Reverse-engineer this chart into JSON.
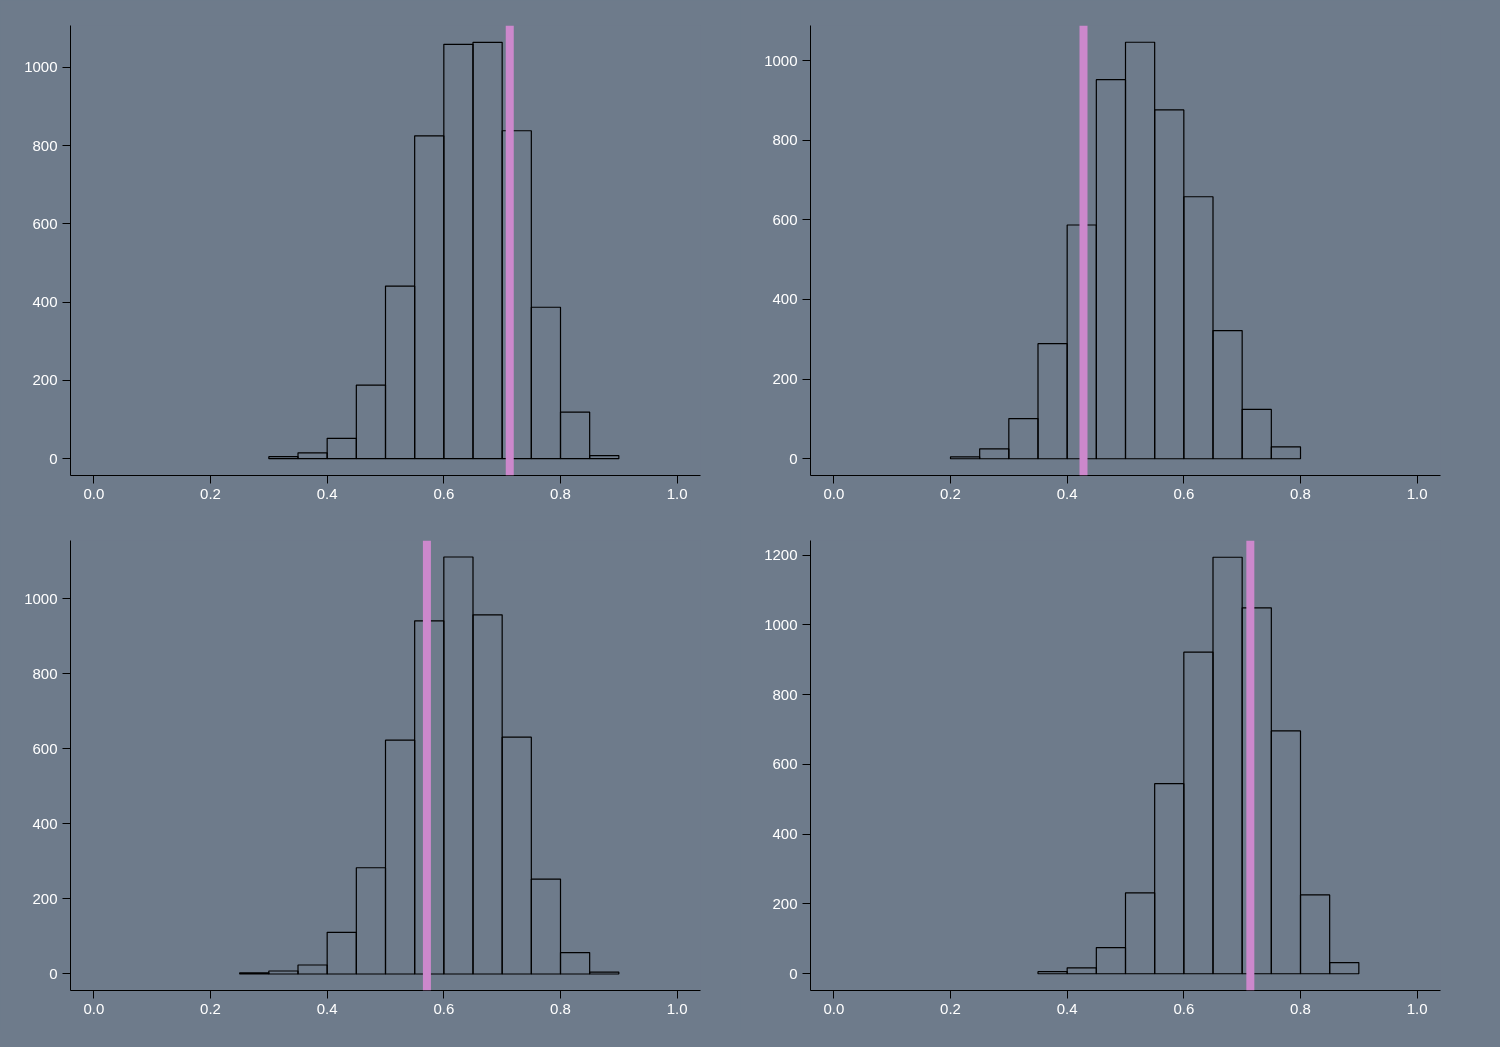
{
  "chart_data": [
    {
      "type": "histogram",
      "bins": [
        0.3,
        0.35,
        0.4,
        0.45,
        0.5,
        0.55,
        0.6,
        0.65,
        0.7,
        0.75,
        0.8,
        0.85,
        0.9
      ],
      "values": [
        5,
        15,
        52,
        188,
        441,
        825,
        1059,
        1064,
        838,
        387,
        119,
        8
      ],
      "color": "#000000",
      "xlim": [
        -0.04,
        1.04
      ],
      "ylim": [
        -43,
        1107
      ],
      "xticks": [
        {
          "value": 0,
          "label": "0.0"
        },
        {
          "value": 0.2,
          "label": "0.2"
        },
        {
          "value": 0.4,
          "label": "0.4"
        },
        {
          "value": 0.6,
          "label": "0.6"
        },
        {
          "value": 0.8,
          "label": "0.8"
        },
        {
          "value": 1,
          "label": "1.0"
        }
      ],
      "yticks": [
        0,
        200,
        400,
        600,
        800,
        1000
      ],
      "ref_lines": [
        {
          "axis": "x",
          "value": 0.713,
          "color": "#cc88cc"
        }
      ],
      "grid": false
    },
    {
      "type": "histogram",
      "bins": [
        0.2,
        0.25,
        0.3,
        0.35,
        0.4,
        0.45,
        0.5,
        0.55,
        0.6,
        0.65,
        0.7,
        0.75,
        0.8
      ],
      "values": [
        5,
        25,
        101,
        289,
        587,
        952,
        1046,
        876,
        658,
        322,
        124,
        30
      ],
      "color": "#000000",
      "xlim": [
        -0.04,
        1.04
      ],
      "ylim": [
        -42,
        1088
      ],
      "xticks": [
        {
          "value": 0,
          "label": "0.0"
        },
        {
          "value": 0.2,
          "label": "0.2"
        },
        {
          "value": 0.4,
          "label": "0.4"
        },
        {
          "value": 0.6,
          "label": "0.6"
        },
        {
          "value": 0.8,
          "label": "0.8"
        },
        {
          "value": 1,
          "label": "1.0"
        }
      ],
      "yticks": [
        0,
        200,
        400,
        600,
        800,
        1000
      ],
      "ref_lines": [
        {
          "axis": "x",
          "value": 0.428,
          "color": "#cc88cc"
        }
      ],
      "grid": false
    },
    {
      "type": "histogram",
      "bins": [
        0.25,
        0.3,
        0.35,
        0.4,
        0.45,
        0.5,
        0.55,
        0.6,
        0.65,
        0.7,
        0.75,
        0.8,
        0.85,
        0.9
      ],
      "values": [
        3,
        8,
        24,
        111,
        283,
        623,
        941,
        1111,
        957,
        631,
        253,
        57,
        5
      ],
      "color": "#000000",
      "xlim": [
        -0.04,
        1.04
      ],
      "ylim": [
        -44,
        1155
      ],
      "xticks": [
        {
          "value": 0,
          "label": "0.0"
        },
        {
          "value": 0.2,
          "label": "0.2"
        },
        {
          "value": 0.4,
          "label": "0.4"
        },
        {
          "value": 0.6,
          "label": "0.6"
        },
        {
          "value": 0.8,
          "label": "0.8"
        },
        {
          "value": 1,
          "label": "1.0"
        }
      ],
      "yticks": [
        0,
        200,
        400,
        600,
        800,
        1000
      ],
      "ref_lines": [
        {
          "axis": "x",
          "value": 0.571,
          "color": "#cc88cc"
        }
      ],
      "grid": false
    },
    {
      "type": "histogram",
      "bins": [
        0.35,
        0.4,
        0.45,
        0.5,
        0.55,
        0.6,
        0.65,
        0.7,
        0.75,
        0.8,
        0.85,
        0.9
      ],
      "values": [
        6,
        17,
        75,
        232,
        545,
        922,
        1194,
        1049,
        696,
        226,
        32
      ],
      "color": "#000000",
      "xlim": [
        -0.04,
        1.04
      ],
      "ylim": [
        -48,
        1242
      ],
      "xticks": [
        {
          "value": 0,
          "label": "0.0"
        },
        {
          "value": 0.2,
          "label": "0.2"
        },
        {
          "value": 0.4,
          "label": "0.4"
        },
        {
          "value": 0.6,
          "label": "0.6"
        },
        {
          "value": 0.8,
          "label": "0.8"
        },
        {
          "value": 1,
          "label": "1.0"
        }
      ],
      "yticks": [
        0,
        200,
        400,
        600,
        800,
        1000,
        1200
      ],
      "ref_lines": [
        {
          "axis": "x",
          "value": 0.714,
          "color": "#cc88cc"
        }
      ],
      "grid": false
    }
  ]
}
